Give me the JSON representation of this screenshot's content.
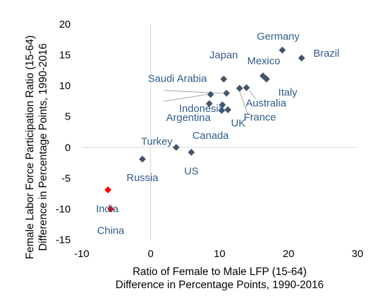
{
  "chart_data": {
    "type": "scatter",
    "xlabel": [
      "Ratio of Female to Male LFP (15-64)",
      "Difference in Percentage Points, 1990-2016"
    ],
    "ylabel": [
      "Female Labor Force Participation Ratio (15-64)",
      "Difference in Percentage Points, 1990-2016"
    ],
    "xlim": [
      -10,
      30
    ],
    "ylim": [
      -15,
      20
    ],
    "x_ticks": [
      "-10",
      "0",
      "10",
      "20",
      "30"
    ],
    "y_ticks": [
      "-15",
      "-10",
      "-5",
      "0",
      "5",
      "10",
      "15",
      "20"
    ],
    "grid": false,
    "legend": "none",
    "colors": {
      "point": "#44546a",
      "highlight": "#ff0000",
      "label": "#2e5c8a",
      "leader": "#a6a6a6"
    },
    "points": [
      {
        "label": "Germany",
        "x": 19.1,
        "y": 15.8
      },
      {
        "label": "Brazil",
        "x": 21.9,
        "y": 14.5
      },
      {
        "label": "Japan",
        "x": 10.6,
        "y": 11.1
      },
      {
        "label": "Saudi Arabia",
        "x": 8.7,
        "y": 8.6
      },
      {
        "label": "Mexico",
        "x": 16.3,
        "y": 11.6
      },
      {
        "label": "Italy",
        "x": 16.8,
        "y": 11.1
      },
      {
        "label": "Australia",
        "x": 13.9,
        "y": 9.7
      },
      {
        "label": "France",
        "x": 12.9,
        "y": 9.6
      },
      {
        "label": null,
        "x": 11.0,
        "y": 8.8
      },
      {
        "label": "Indonesia",
        "x": 8.5,
        "y": 7.1
      },
      {
        "label": "Argentina",
        "x": 10.4,
        "y": 6.9
      },
      {
        "label": "UK",
        "x": 11.2,
        "y": 6.1
      },
      {
        "label": "Canada",
        "x": 10.3,
        "y": 6.0
      },
      {
        "label": "Turkey",
        "x": 3.7,
        "y": 0.0
      },
      {
        "label": "US",
        "x": 5.9,
        "y": -0.8
      },
      {
        "label": "Russia",
        "x": -1.2,
        "y": -1.9
      },
      {
        "label": "India",
        "x": -6.2,
        "y": -6.9,
        "highlight": true
      },
      {
        "label": "China",
        "x": -5.8,
        "y": -10.0,
        "highlight": true
      }
    ]
  }
}
